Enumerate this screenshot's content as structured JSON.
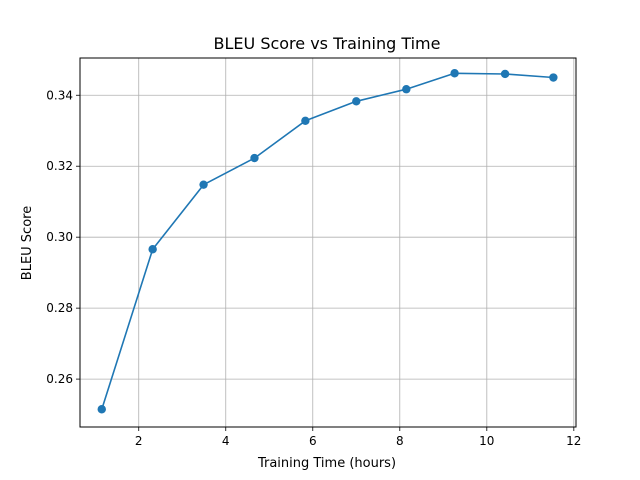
{
  "colors": {
    "series": "#1f77b4",
    "grid": "#b0b0b0",
    "axis": "#000000"
  },
  "chart_data": {
    "type": "line",
    "title": "BLEU Score vs Training Time",
    "xlabel": "Training Time (hours)",
    "ylabel": "BLEU Score",
    "xlim": [
      0.65,
      12.05
    ],
    "ylim": [
      0.2465,
      0.3505
    ],
    "xticks": [
      2,
      4,
      6,
      8,
      10,
      12
    ],
    "yticks": [
      0.26,
      0.28,
      0.3,
      0.32,
      0.34
    ],
    "xtick_labels": [
      "2",
      "4",
      "6",
      "8",
      "10",
      "12"
    ],
    "ytick_labels": [
      "0.26",
      "0.28",
      "0.30",
      "0.32",
      "0.34"
    ],
    "grid": true,
    "marker": "circle",
    "series": [
      {
        "x": [
          1.15,
          2.32,
          3.49,
          4.66,
          5.83,
          7.0,
          8.15,
          9.26,
          10.42,
          11.53
        ],
        "y": [
          0.2515,
          0.2966,
          0.3148,
          0.3223,
          0.3328,
          0.3383,
          0.3417,
          0.3462,
          0.346,
          0.345
        ]
      }
    ]
  }
}
